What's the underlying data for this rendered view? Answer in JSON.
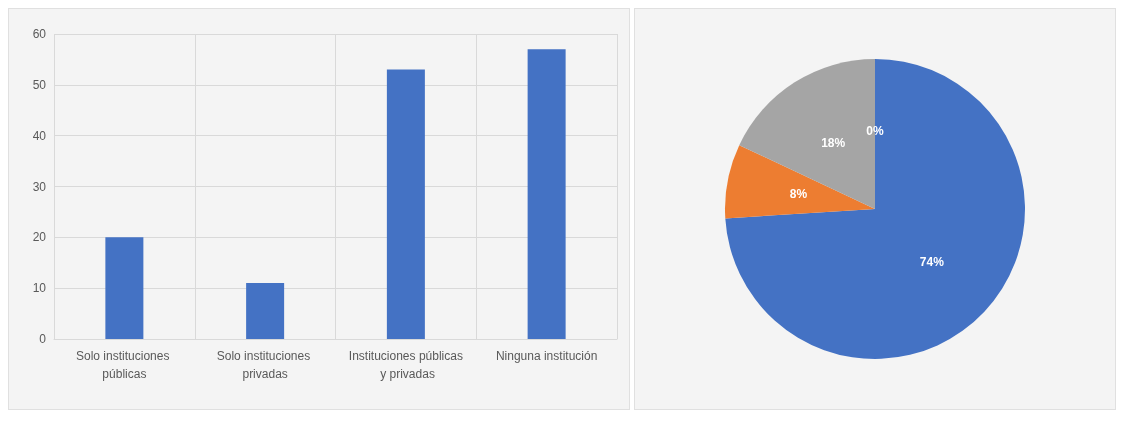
{
  "chart_data": [
    {
      "type": "bar",
      "categories": [
        "Solo instituciones públicas",
        "Solo instituciones privadas",
        "Instituciones públicas y privadas",
        "Ninguna institución"
      ],
      "values": [
        20,
        11,
        53,
        57
      ],
      "color": "#4472c4",
      "ylim": [
        0,
        60
      ],
      "yticks": [
        0,
        10,
        20,
        30,
        40,
        50,
        60
      ],
      "grid": true
    },
    {
      "type": "pie",
      "categories": [
        null,
        null,
        null,
        null
      ],
      "values": [
        74,
        8,
        18,
        0
      ],
      "colors": [
        "#4472c4",
        "#ed7d31",
        "#a5a5a5",
        "#ffc000"
      ],
      "value_labels": [
        "74%",
        "8%",
        "18%",
        "0%"
      ]
    }
  ]
}
